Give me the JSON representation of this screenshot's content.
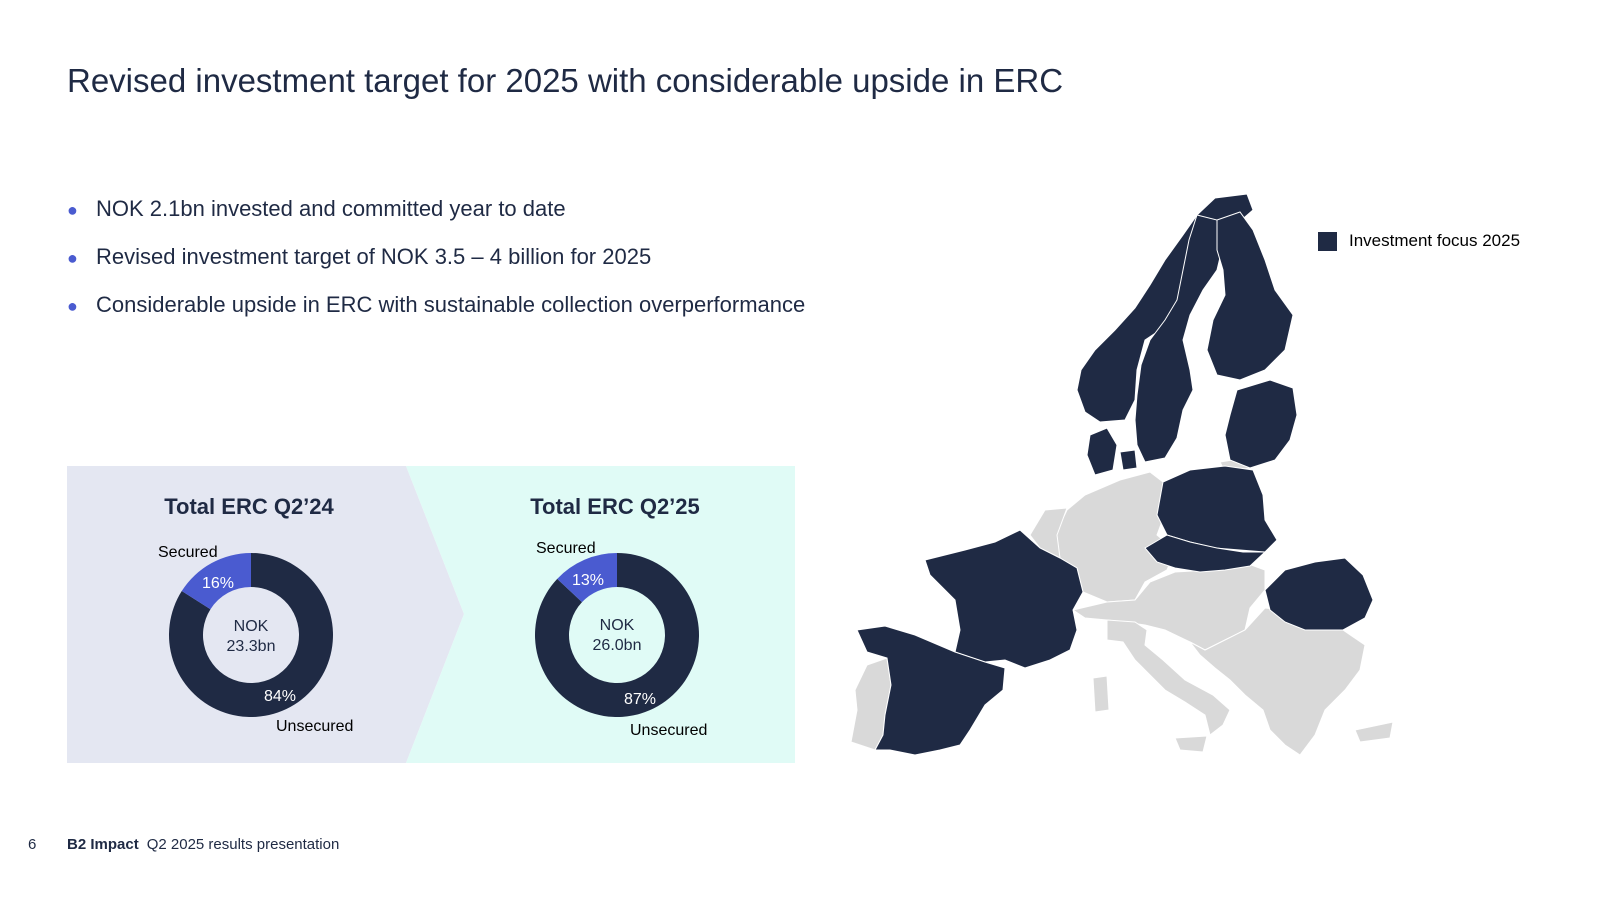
{
  "slide": {
    "title": "Revised investment target for 2025 with considerable upside in ERC",
    "bullets": [
      "NOK 2.1bn invested and committed year to date",
      "Revised investment target of NOK 3.5 – 4 billion for 2025",
      "Considerable upside in ERC with sustainable collection overperformance"
    ]
  },
  "colors": {
    "navy": "#1f2a44",
    "secured": "#4a5bd0",
    "panel_left": "#e4e7f2",
    "panel_right": "#e0fbf6",
    "map_other": "#d9d9d9"
  },
  "donuts": [
    {
      "title": "Total ERC Q2’24",
      "center_line1": "NOK",
      "center_line2": "23.3bn",
      "secured_label": "Secured",
      "unsecured_label": "Unsecured",
      "secured_pct_text": "16%",
      "unsecured_pct_text": "84%",
      "secured_share": 0.16
    },
    {
      "title": "Total ERC Q2’25",
      "center_line1": "NOK",
      "center_line2": "26.0bn",
      "secured_label": "Secured",
      "unsecured_label": "Unsecured",
      "secured_pct_text": "13%",
      "unsecured_pct_text": "87%",
      "secured_share": 0.13
    }
  ],
  "map": {
    "legend_label": "Investment focus 2025"
  },
  "footer": {
    "page_number": "6",
    "brand": "B2 Impact",
    "subtitle": "Q2 2025 results presentation"
  }
}
